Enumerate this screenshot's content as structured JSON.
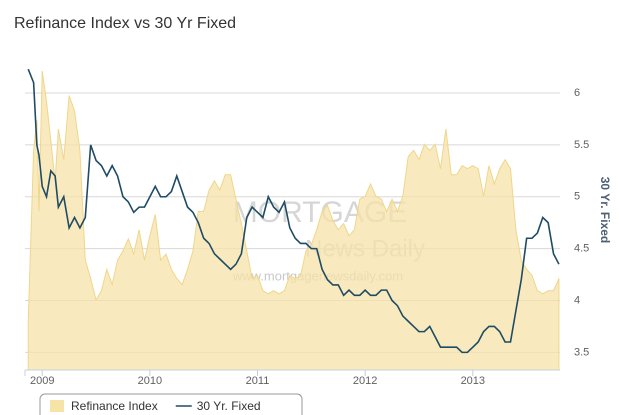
{
  "chart_data": {
    "type": "area-line",
    "title": "Refinance Index vs 30 Yr Fixed",
    "y2label": "30 Yr. Fixed",
    "annotations": [
      "MORTGAGE",
      "News Daily",
      "www.mortgagenewsdaily.com"
    ],
    "x": [
      2008.87,
      2008.92,
      2008.95,
      2008.97,
      2009.0,
      2009.04,
      2009.08,
      2009.12,
      2009.15,
      2009.2,
      2009.25,
      2009.3,
      2009.35,
      2009.4,
      2009.45,
      2009.5,
      2009.55,
      2009.6,
      2009.65,
      2009.7,
      2009.75,
      2009.8,
      2009.85,
      2009.9,
      2009.95,
      2010.0,
      2010.05,
      2010.1,
      2010.15,
      2010.2,
      2010.25,
      2010.3,
      2010.35,
      2010.4,
      2010.45,
      2010.5,
      2010.55,
      2010.6,
      2010.65,
      2010.7,
      2010.75,
      2010.8,
      2010.85,
      2010.9,
      2010.95,
      2011.0,
      2011.05,
      2011.1,
      2011.15,
      2011.2,
      2011.25,
      2011.3,
      2011.35,
      2011.4,
      2011.45,
      2011.5,
      2011.55,
      2011.6,
      2011.65,
      2011.7,
      2011.75,
      2011.8,
      2011.85,
      2011.9,
      2011.95,
      2012.0,
      2012.05,
      2012.1,
      2012.15,
      2012.2,
      2012.25,
      2012.3,
      2012.35,
      2012.4,
      2012.45,
      2012.5,
      2012.55,
      2012.6,
      2012.65,
      2012.7,
      2012.75,
      2012.8,
      2012.85,
      2012.9,
      2012.95,
      2013.0,
      2013.05,
      2013.1,
      2013.15,
      2013.2,
      2013.25,
      2013.3,
      2013.35,
      2013.4,
      2013.45,
      2013.5,
      2013.55,
      2013.6,
      2013.65,
      2013.7,
      2013.75,
      2013.8
    ],
    "series": [
      {
        "name": "Refinance Index",
        "kind": "area",
        "axis": "y",
        "color": "#f6e3a8",
        "values": [
          16,
          72,
          82,
          52,
          98,
          88,
          75,
          62,
          79,
          69,
          90,
          85,
          72,
          36,
          30,
          23,
          26,
          33,
          28,
          36,
          39,
          43,
          38,
          46,
          36,
          44,
          51,
          36,
          38,
          33,
          30,
          28,
          33,
          39,
          52,
          52,
          59,
          62,
          59,
          64,
          64,
          56,
          48,
          39,
          30,
          31,
          26,
          25,
          26,
          25,
          26,
          31,
          30,
          31,
          39,
          41,
          46,
          52,
          54,
          49,
          46,
          48,
          44,
          46,
          56,
          57,
          61,
          57,
          56,
          52,
          56,
          52,
          57,
          70,
          72,
          69,
          74,
          72,
          74,
          66,
          79,
          64,
          64,
          67,
          66,
          67,
          66,
          57,
          67,
          61,
          66,
          69,
          66,
          46,
          36,
          33,
          31,
          26,
          25,
          26,
          26,
          30
        ]
      },
      {
        "name": "30 Yr. Fixed",
        "kind": "line",
        "axis": "y2",
        "color": "#1f4b63",
        "values": [
          6.23,
          6.1,
          5.5,
          5.4,
          5.1,
          5.0,
          5.25,
          5.2,
          4.9,
          5.0,
          4.7,
          4.8,
          4.7,
          4.8,
          5.5,
          5.35,
          5.3,
          5.2,
          5.3,
          5.2,
          5.0,
          4.95,
          4.85,
          4.9,
          4.9,
          5.0,
          5.1,
          5.0,
          5.0,
          5.05,
          5.2,
          5.05,
          4.9,
          4.85,
          4.75,
          4.6,
          4.55,
          4.45,
          4.4,
          4.35,
          4.3,
          4.35,
          4.45,
          4.8,
          4.9,
          4.85,
          4.8,
          5.0,
          4.9,
          4.85,
          4.95,
          4.7,
          4.6,
          4.55,
          4.55,
          4.5,
          4.5,
          4.3,
          4.2,
          4.15,
          4.15,
          4.05,
          4.1,
          4.05,
          4.05,
          4.1,
          4.05,
          4.05,
          4.1,
          4.1,
          4.0,
          3.95,
          3.85,
          3.8,
          3.75,
          3.7,
          3.7,
          3.75,
          3.65,
          3.55,
          3.55,
          3.55,
          3.55,
          3.5,
          3.5,
          3.55,
          3.6,
          3.7,
          3.75,
          3.75,
          3.7,
          3.6,
          3.6,
          3.9,
          4.2,
          4.6,
          4.6,
          4.65,
          4.8,
          4.75,
          4.45,
          4.35
        ]
      }
    ],
    "xlim": [
      2008.84,
      2013.81
    ],
    "xticks": [
      2009,
      2010,
      2011,
      2012,
      2013
    ],
    "ylim": [
      0,
      100
    ],
    "y2lim": [
      3.33,
      6.27
    ],
    "y2ticks": [
      3.5,
      4,
      {
        "value": 4.5,
        "label": "4.5"
      },
      5,
      5.5,
      6
    ],
    "grid": true
  }
}
